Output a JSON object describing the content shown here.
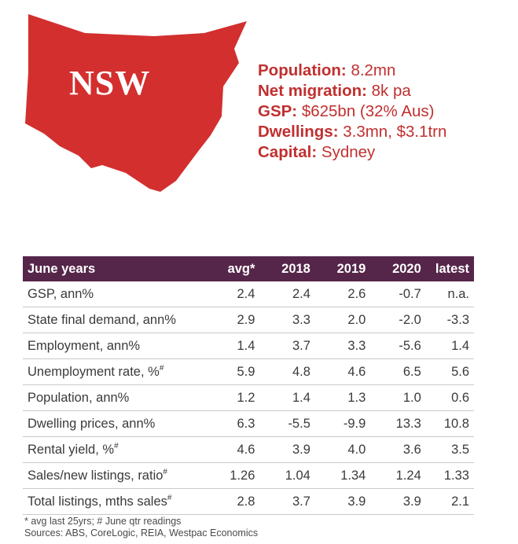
{
  "map": {
    "label": "NSW",
    "color": "#d32f2f"
  },
  "facts": [
    {
      "key": "Population",
      "value": "8.2mn"
    },
    {
      "key": "Net migration",
      "value": "8k pa"
    },
    {
      "key": "GSP",
      "value": "$625bn (32% Aus)"
    },
    {
      "key": "Dwellings",
      "value": "3.3mn, $3.1trn"
    },
    {
      "key": "Capital",
      "value": "Sydney"
    }
  ],
  "table": {
    "header_color": "#56264a",
    "headers": [
      "June years",
      "avg*",
      "2018",
      "2019",
      "2020",
      "latest"
    ],
    "rows": [
      {
        "label": "GSP, ann%",
        "sup": "",
        "values": [
          "2.4",
          "2.4",
          "2.6",
          "-0.7",
          "n.a."
        ]
      },
      {
        "label": "State final demand, ann%",
        "sup": "",
        "values": [
          "2.9",
          "3.3",
          "2.0",
          "-2.0",
          "-3.3"
        ]
      },
      {
        "label": "Employment, ann%",
        "sup": "",
        "values": [
          "1.4",
          "3.7",
          "3.3",
          "-5.6",
          "1.4"
        ]
      },
      {
        "label": "Unemployment rate, %",
        "sup": "#",
        "values": [
          "5.9",
          "4.8",
          "4.6",
          "6.5",
          "5.6"
        ]
      },
      {
        "label": "Population, ann%",
        "sup": "",
        "values": [
          "1.2",
          "1.4",
          "1.3",
          "1.0",
          "0.6"
        ]
      },
      {
        "label": "Dwelling prices, ann%",
        "sup": "",
        "values": [
          "6.3",
          "-5.5",
          "-9.9",
          "13.3",
          "10.8"
        ]
      },
      {
        "label": "Rental yield, %",
        "sup": "#",
        "values": [
          "4.6",
          "3.9",
          "4.0",
          "3.6",
          "3.5"
        ]
      },
      {
        "label": "Sales/new listings, ratio",
        "sup": "#",
        "values": [
          "1.26",
          "1.04",
          "1.34",
          "1.24",
          "1.33"
        ]
      },
      {
        "label": "Total listings, mths sales",
        "sup": "#",
        "values": [
          "2.8",
          "3.7",
          "3.9",
          "3.9",
          "2.1"
        ]
      }
    ]
  },
  "notes": {
    "line1": "* avg last 25yrs; # June qtr readings",
    "line2": "Sources: ABS, CoreLogic, REIA, Westpac Economics"
  }
}
